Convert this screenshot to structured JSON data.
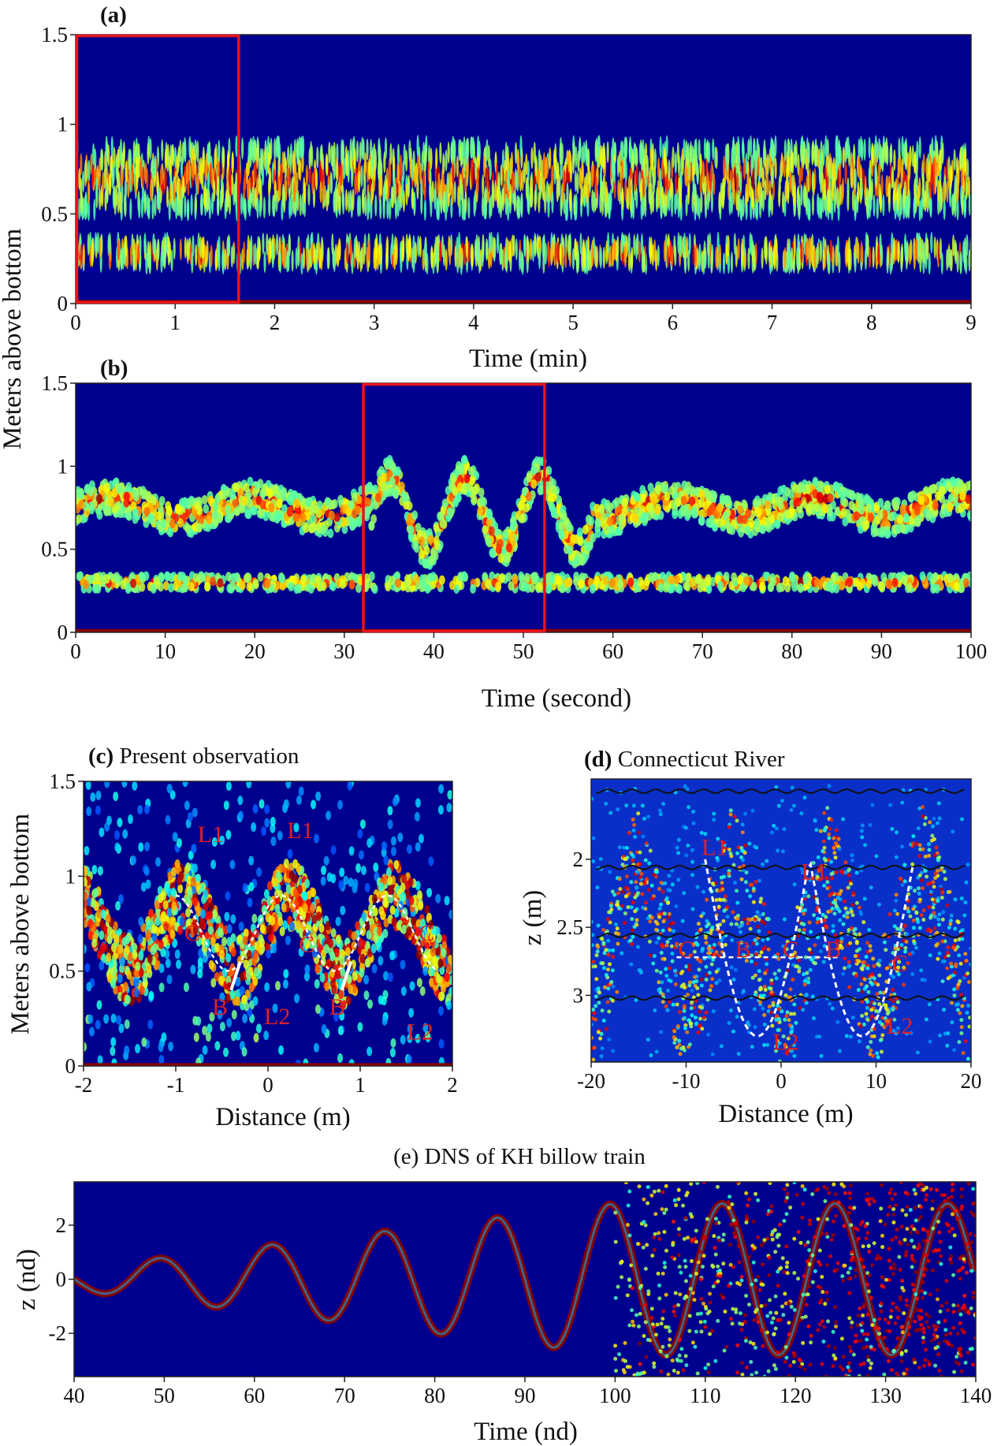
{
  "figure": {
    "shared_ylabel_ab": "Meters above bottom"
  },
  "chart_data": [
    {
      "id": "a",
      "type": "heatmap",
      "panel_label": "(a)",
      "title": "",
      "xlabel": "Time (min)",
      "ylabel": "Meters above bottom",
      "xlim": [
        0,
        9
      ],
      "ylim": [
        0,
        1.5
      ],
      "xticks": [
        0,
        1,
        2,
        3,
        4,
        5,
        6,
        7,
        8,
        9
      ],
      "xtick_labels": [
        "0",
        "1",
        "2",
        "3",
        "4",
        "5",
        "6",
        "7",
        "8",
        "9"
      ],
      "yticks": [
        0,
        0.5,
        1,
        1.5
      ],
      "ytick_labels": [
        "0",
        "0.5",
        "1",
        "1.5"
      ],
      "highlight_box": {
        "x": [
          0,
          1.65
        ],
        "y": [
          0,
          1.5
        ],
        "color": "#e8141c"
      },
      "bands": [
        {
          "center": 0.7,
          "width": 0.18
        },
        {
          "center": 0.28,
          "width": 0.06
        }
      ]
    },
    {
      "id": "b",
      "type": "heatmap",
      "panel_label": "(b)",
      "title": "",
      "xlabel": "Time (second)",
      "ylabel": "Meters above bottom",
      "xlim": [
        0,
        100
      ],
      "ylim": [
        0,
        1.5
      ],
      "xticks": [
        0,
        10,
        20,
        30,
        40,
        50,
        60,
        70,
        80,
        90,
        100
      ],
      "xtick_labels": [
        "0",
        "10",
        "20",
        "30",
        "40",
        "50",
        "60",
        "70",
        "80",
        "90",
        "100"
      ],
      "yticks": [
        0,
        0.5,
        1,
        1.5
      ],
      "ytick_labels": [
        "0",
        "0.5",
        "1",
        "1.5"
      ],
      "highlight_box": {
        "x": [
          32,
          52.5
        ],
        "y": [
          0,
          1.5
        ],
        "color": "#e8141c"
      },
      "bands": [
        {
          "center": 0.75,
          "width": 0.1
        },
        {
          "center": 0.3,
          "width": 0.04
        }
      ]
    },
    {
      "id": "c",
      "type": "heatmap",
      "panel_label": "(c)",
      "title": "Present observation",
      "xlabel": "Distance (m)",
      "ylabel": "Meters above bottom",
      "xlim": [
        -2,
        2
      ],
      "ylim": [
        0,
        1.5
      ],
      "xticks": [
        -2,
        -1,
        0,
        1,
        2
      ],
      "xtick_labels": [
        "-2",
        "-1",
        "0",
        "1",
        "2"
      ],
      "yticks": [
        0,
        0.5,
        1,
        1.5
      ],
      "ytick_labels": [
        "0",
        "0.5",
        "1",
        "1.5"
      ],
      "annotations": [
        {
          "text": "L1",
          "x": -0.62,
          "y": 1.18
        },
        {
          "text": "L1",
          "x": 0.35,
          "y": 1.2
        },
        {
          "text": "C",
          "x": -0.82,
          "y": 0.66
        },
        {
          "text": "C",
          "x": 0.42,
          "y": 0.6
        },
        {
          "text": "C",
          "x": 1.72,
          "y": 0.66
        },
        {
          "text": "B",
          "x": -0.52,
          "y": 0.27
        },
        {
          "text": "B",
          "x": 0.75,
          "y": 0.27
        },
        {
          "text": "L2",
          "x": 0.1,
          "y": 0.22
        },
        {
          "text": "L2",
          "x": 1.65,
          "y": 0.14
        }
      ]
    },
    {
      "id": "d",
      "type": "heatmap",
      "panel_label": "(d)",
      "title": "Connecticut River",
      "xlabel": "Distance (m)",
      "ylabel": "z (m)",
      "xlim": [
        -20,
        20
      ],
      "ylim": [
        3.49,
        1.41
      ],
      "xticks": [
        -20,
        -10,
        0,
        10,
        20
      ],
      "xtick_labels": [
        "-20",
        "-10",
        "0",
        "10",
        "20"
      ],
      "yticks": [
        2,
        2.5,
        3
      ],
      "ytick_labels": [
        "2",
        "2.5",
        "3"
      ],
      "annotations": [
        {
          "text": "L1",
          "x": -7,
          "y": 1.97
        },
        {
          "text": "L1",
          "x": 3.5,
          "y": 2.15
        },
        {
          "text": "C",
          "x": -10,
          "y": 2.72
        },
        {
          "text": "B",
          "x": -4,
          "y": 2.72
        },
        {
          "text": "C",
          "x": 1,
          "y": 2.72
        },
        {
          "text": "B",
          "x": 5.5,
          "y": 2.72
        },
        {
          "text": "C",
          "x": 12.5,
          "y": 2.82
        },
        {
          "text": "L2",
          "x": 0.5,
          "y": 3.4
        },
        {
          "text": "L2",
          "x": 12.5,
          "y": 3.28
        }
      ]
    },
    {
      "id": "e",
      "type": "heatmap",
      "panel_label": "",
      "title": "(e) DNS of KH billow train",
      "xlabel": "Time (nd)",
      "ylabel": "z (nd)",
      "xlim": [
        40,
        140
      ],
      "ylim": [
        -3.6,
        3.6
      ],
      "xticks": [
        40,
        50,
        60,
        70,
        80,
        90,
        100,
        110,
        120,
        130,
        140
      ],
      "xtick_labels": [
        "40",
        "50",
        "60",
        "70",
        "80",
        "90",
        "100",
        "110",
        "120",
        "130",
        "140"
      ],
      "yticks": [
        -2,
        0,
        2
      ],
      "ytick_labels": [
        "-2",
        "0",
        "2"
      ]
    }
  ]
}
